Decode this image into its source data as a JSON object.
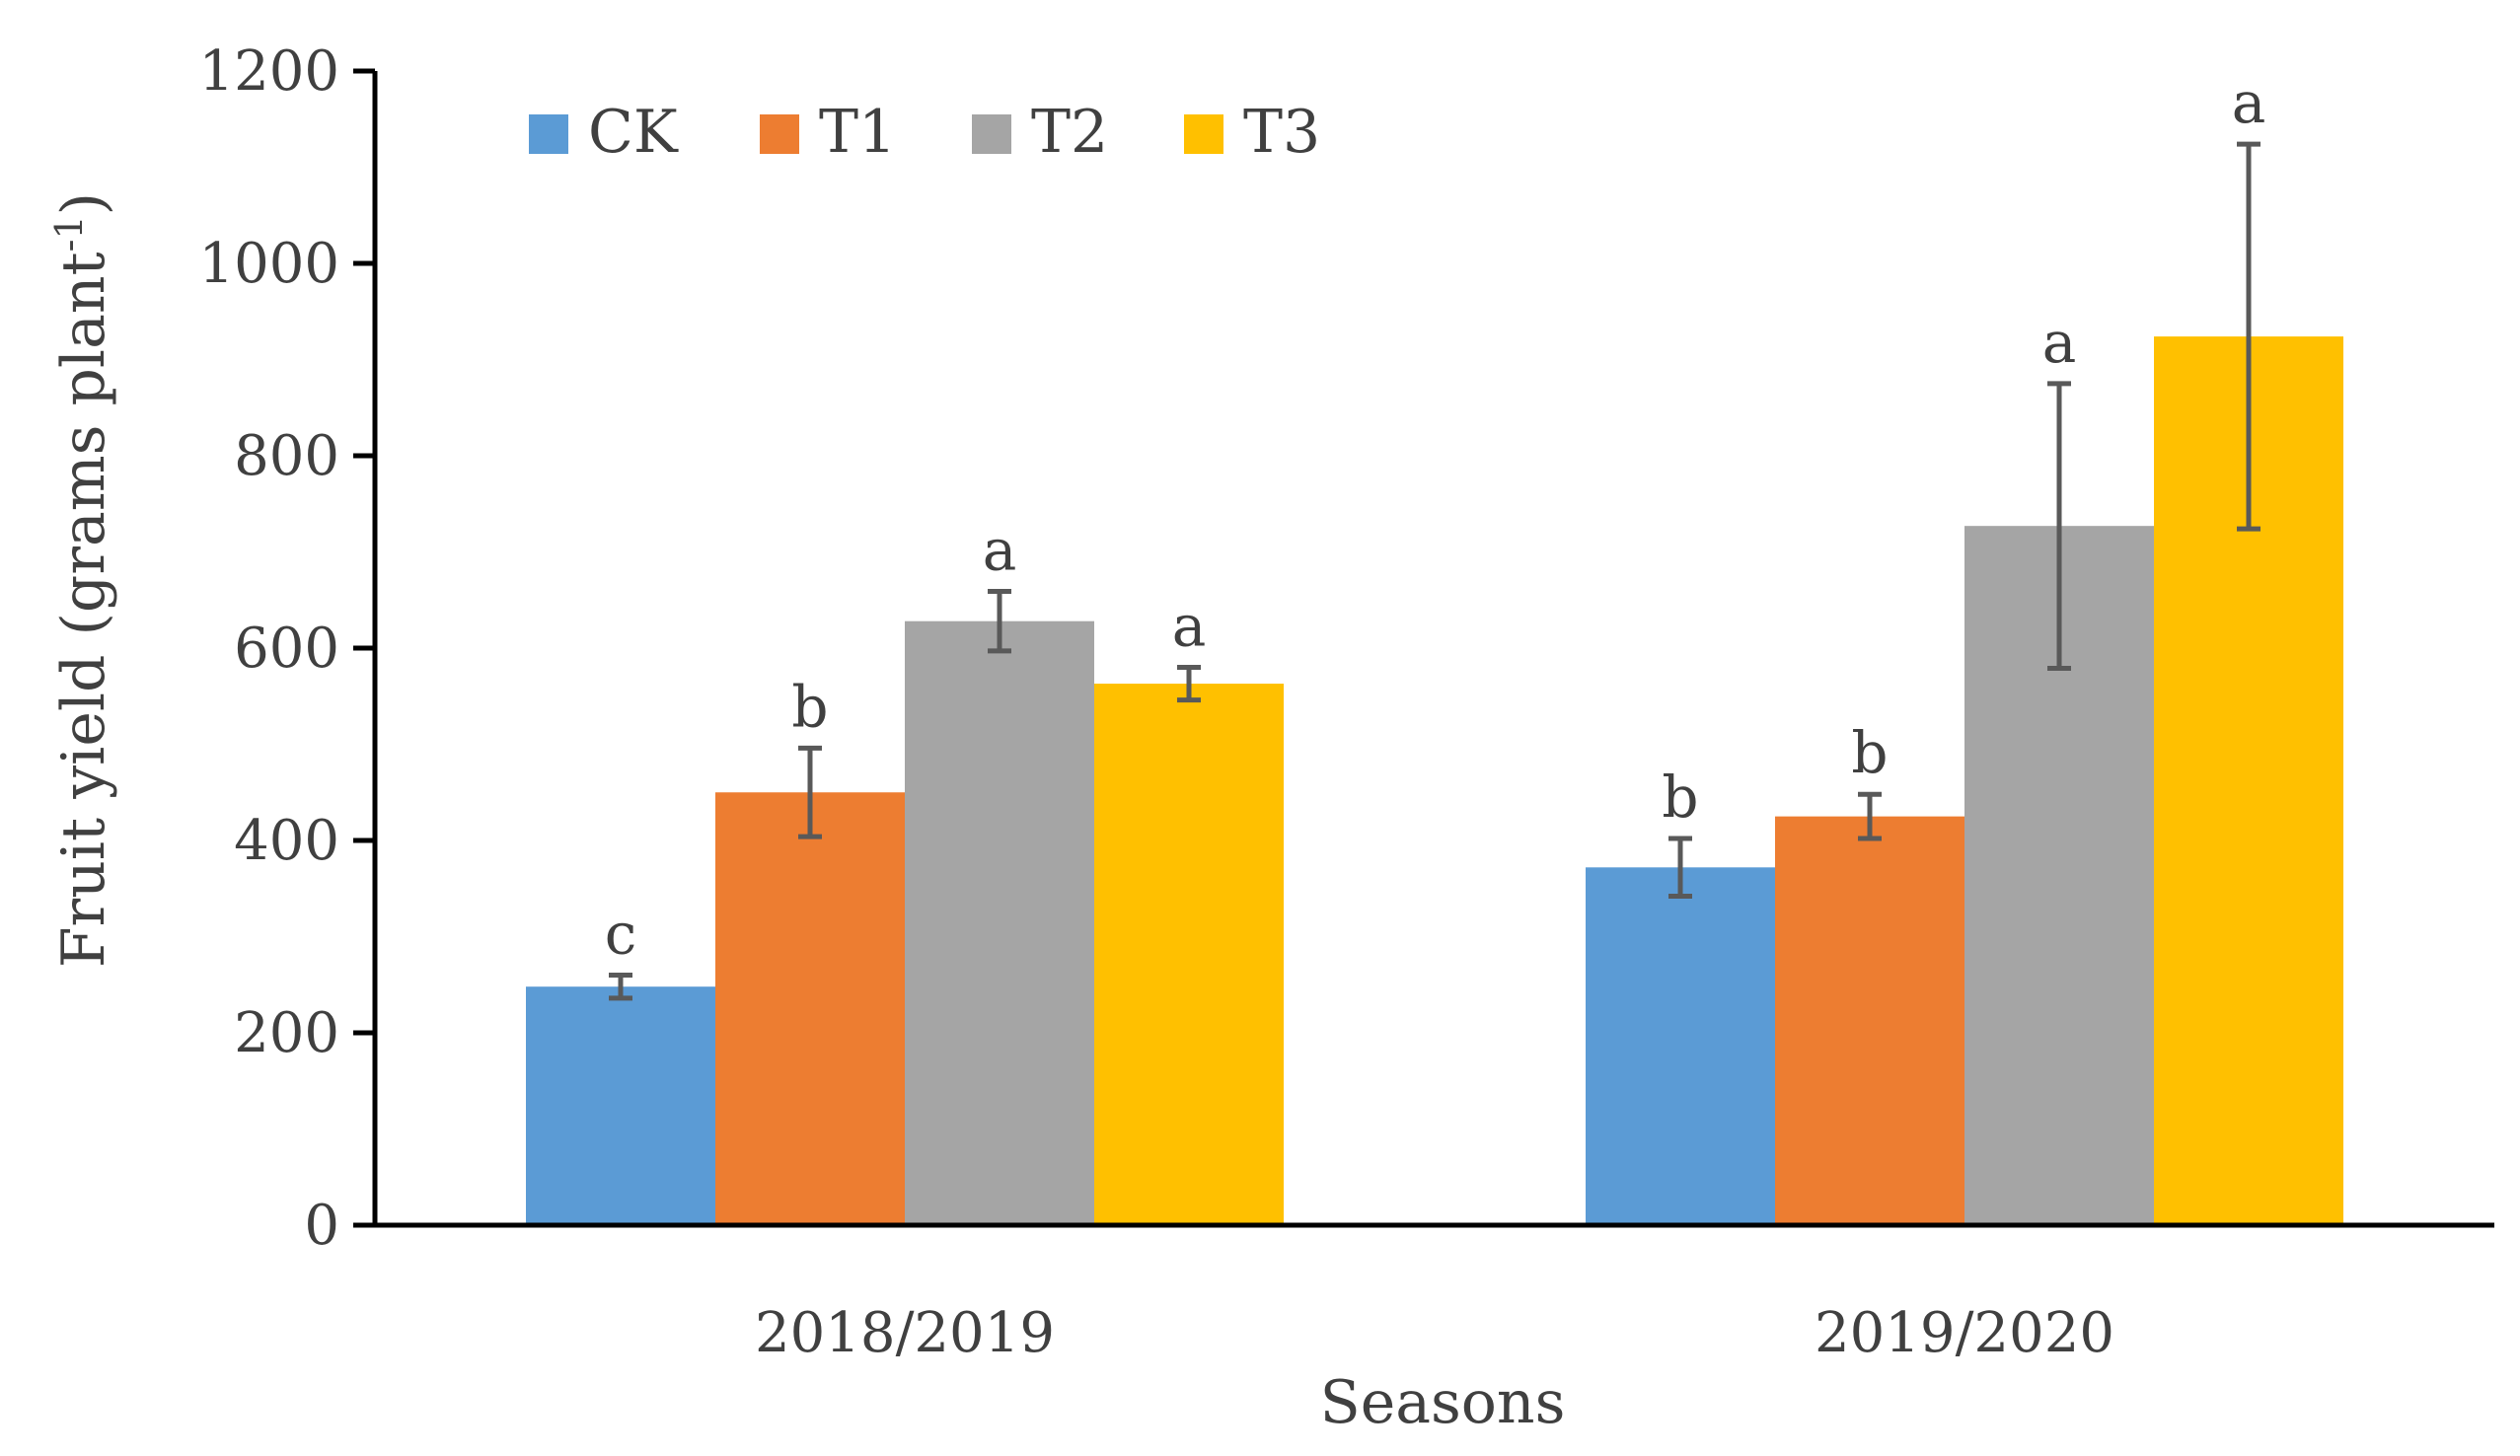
{
  "chart_data": {
    "type": "bar",
    "title": "",
    "xlabel": "Seasons",
    "ylabel": "Fruit yield (grams plant",
    "ylabel_superscript": "-1",
    "ylabel_suffix": ")",
    "ylim": [
      0,
      1200
    ],
    "yticks": [
      0,
      200,
      400,
      600,
      800,
      1000,
      1200
    ],
    "grid": false,
    "legend_position": "top-left",
    "categories": [
      "2018/2019",
      "2019/2020"
    ],
    "series": [
      {
        "name": "CK",
        "color": "#5B9BD5",
        "values": [
          248,
          372
        ],
        "errors": [
          12,
          30
        ],
        "significance": [
          "c",
          "b"
        ]
      },
      {
        "name": "T1",
        "color": "#ED7D31",
        "values": [
          450,
          425
        ],
        "errors": [
          46,
          23
        ],
        "significance": [
          "b",
          "b"
        ]
      },
      {
        "name": "T2",
        "color": "#A5A5A5",
        "values": [
          628,
          727
        ],
        "errors": [
          31,
          148
        ],
        "significance": [
          "a",
          "a"
        ]
      },
      {
        "name": "T3",
        "color": "#FFC000",
        "values": [
          563,
          924
        ],
        "errors": [
          17,
          200
        ],
        "significance": [
          "a",
          "a"
        ]
      }
    ]
  }
}
